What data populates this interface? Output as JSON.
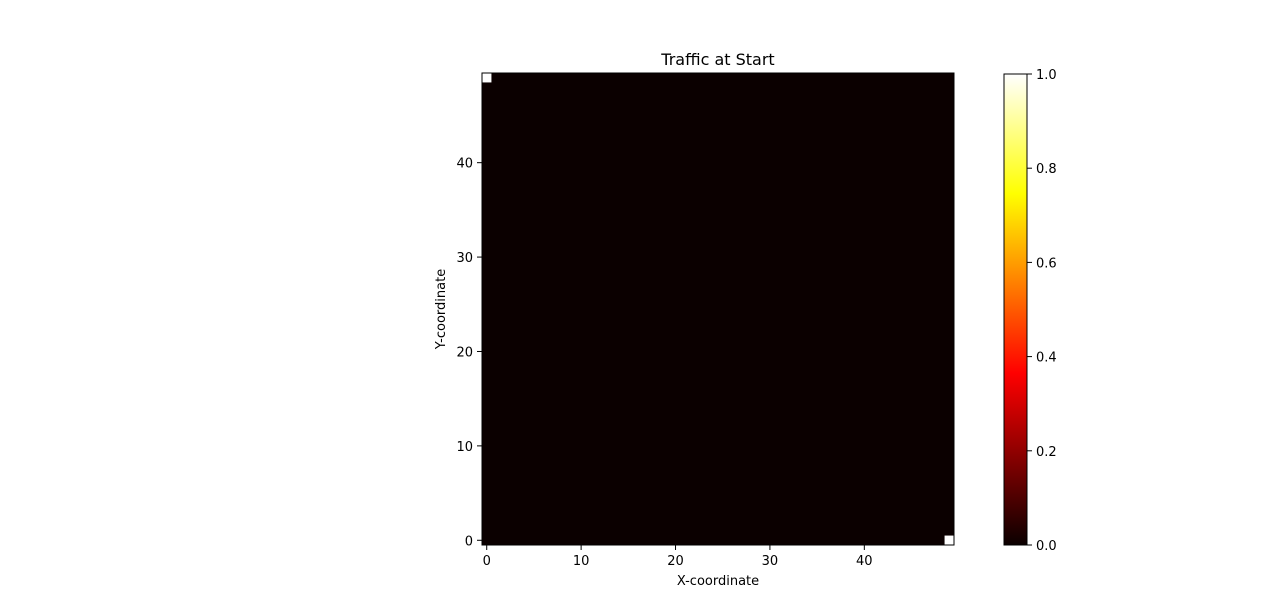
{
  "chart_data": {
    "type": "heatmap",
    "title": "Traffic at Start",
    "xlabel": "X-coordinate",
    "ylabel": "Y-coordinate",
    "grid_size": [
      50,
      50
    ],
    "xlim": [
      -0.5,
      49.5
    ],
    "ylim": [
      -0.5,
      49.5
    ],
    "x_ticks": [
      0,
      10,
      20,
      30,
      40
    ],
    "y_ticks": [
      0,
      10,
      20,
      30,
      40
    ],
    "origin": "lower",
    "colormap": "hot",
    "background_value": 0.0,
    "cells": [
      {
        "x": 0,
        "y": 49,
        "value": 1.0
      },
      {
        "x": 49,
        "y": 0,
        "value": 1.0
      }
    ],
    "colorbar": {
      "range": [
        0.0,
        1.0
      ],
      "ticks": [
        0.0,
        0.2,
        0.4,
        0.6,
        0.8,
        1.0
      ],
      "tick_labels": [
        "0.0",
        "0.2",
        "0.4",
        "0.6",
        "0.8",
        "1.0"
      ]
    },
    "grid": false
  }
}
